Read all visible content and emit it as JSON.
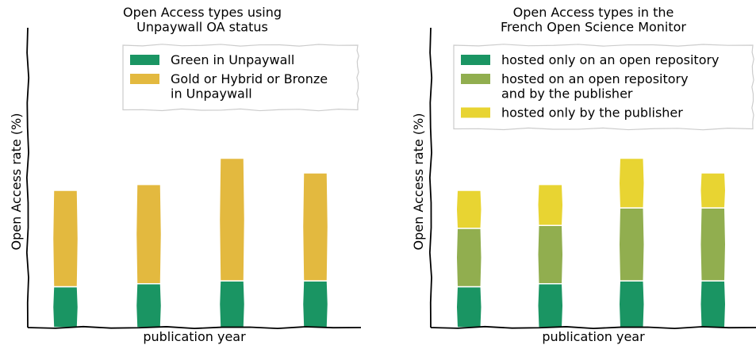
{
  "chart_data": [
    {
      "type": "stacked_bar",
      "title": "Open Access types using\nUnpaywall OA status",
      "xlabel": "publication year",
      "ylabel": "Open Access rate (%)",
      "categories": [
        null,
        null,
        null,
        null
      ],
      "ylim": [
        0,
        100
      ],
      "legend": "upper right",
      "series": [
        {
          "name": "Green in Unpaywall",
          "color": "#1a9563",
          "values": [
            14,
            15,
            16,
            16
          ]
        },
        {
          "name": "Gold or Hybrid or Bronze\nin Unpaywall",
          "color": "#e3b93f",
          "values": [
            33,
            34,
            42,
            37
          ]
        }
      ]
    },
    {
      "type": "stacked_bar",
      "title": "Open Access types in the\nFrench Open Science Monitor",
      "xlabel": "publication year",
      "ylabel": "Open Access rate (%)",
      "categories": [
        null,
        null,
        null,
        null
      ],
      "ylim": [
        0,
        100
      ],
      "legend": "upper right",
      "series": [
        {
          "name": "hosted only on an open repository",
          "color": "#1a9563",
          "values": [
            14,
            15,
            16,
            16
          ]
        },
        {
          "name": "hosted on an open repository\nand by the publisher",
          "color": "#91ae4f",
          "values": [
            20,
            20,
            25,
            25
          ]
        },
        {
          "name": "hosted only by the publisher",
          "color": "#e8d432",
          "values": [
            13,
            14,
            17,
            12
          ]
        }
      ]
    }
  ]
}
